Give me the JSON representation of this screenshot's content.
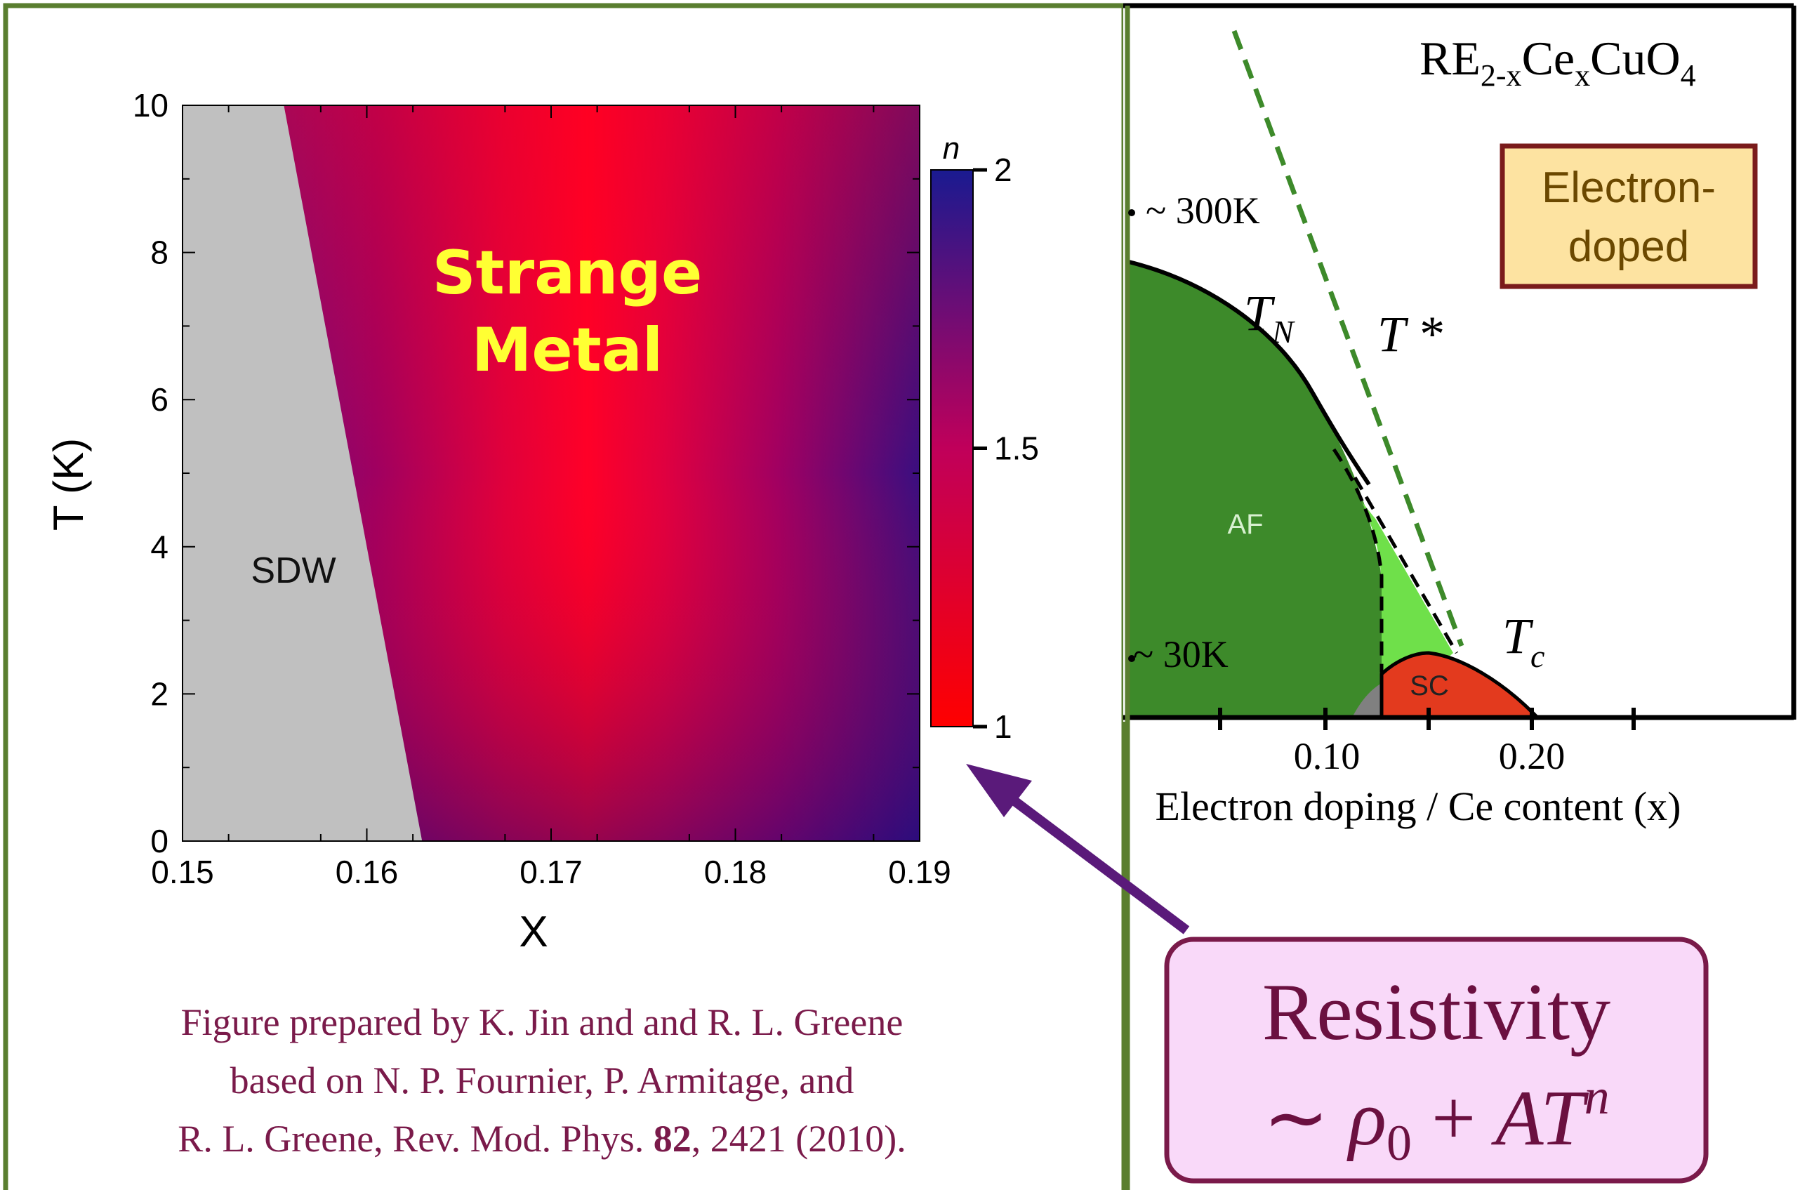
{
  "chart_data": [
    {
      "type": "heatmap",
      "title": "",
      "xlabel": "X",
      "ylabel": "T (K)",
      "xlim": [
        0.15,
        0.19
      ],
      "ylim": [
        0,
        10
      ],
      "xticks": [
        "0.15",
        "0.16",
        "0.17",
        "0.18",
        "0.19"
      ],
      "yticks": [
        "0",
        "2",
        "4",
        "6",
        "8",
        "10"
      ],
      "colorbar": {
        "label": "n",
        "range": [
          1,
          2
        ],
        "ticks": [
          "1",
          "1.5",
          "2"
        ],
        "low_color": "#ff0000",
        "high_color": "#1a0a78"
      },
      "regions": [
        {
          "name": "SDW",
          "boundary": [
            [
              0.1555,
              10
            ],
            [
              0.163,
              0
            ]
          ],
          "color": "#c0c0c0"
        },
        {
          "name": "Strange Metal",
          "color_scale": "n"
        }
      ],
      "annotations": [
        {
          "text": "Strange",
          "color": "#ffff33"
        },
        {
          "text": "Metal",
          "color": "#ffff33"
        }
      ]
    },
    {
      "type": "area",
      "title": "RE2-xCexCuO4",
      "xlabel": "Electron doping / Ce content (x)",
      "xticks": [
        "0.10",
        "0.20"
      ],
      "phases": [
        {
          "name": "AF",
          "color": "#3d8a2a"
        },
        {
          "name": "SC",
          "color": "#e33a1e"
        }
      ],
      "lines": [
        {
          "name": "TN",
          "label": "T",
          "sub": "N"
        },
        {
          "name": "T*",
          "label": "T *",
          "style": "dashed",
          "color": "#3d8a2a"
        },
        {
          "name": "Tc",
          "label": "T",
          "sub": "c"
        }
      ],
      "annotations": [
        "~ 300K",
        "~ 30K"
      ],
      "badge": {
        "line1": "Electron-",
        "line2": "doped",
        "bg": "#fde3a1",
        "border": "#7a1b1b",
        "color": "#6b4800"
      }
    }
  ],
  "caption": {
    "line1": "Figure prepared by K. Jin and and R. L. Greene",
    "line2": "based on N. P. Fournier, P. Armitage, and",
    "line3_pre": "R. L. Greene, Rev. Mod. Phys. ",
    "line3_bold": "82",
    "line3_post": ", 2421 (2010).",
    "color": "#7a1a4a"
  },
  "callout": {
    "title": "Resistivity",
    "tilde": "∼",
    "rho": "ρ",
    "rho_sub": "0",
    "plus": "+",
    "A": "A",
    "T": "T",
    "n": "n",
    "bg": "#f9d9f9",
    "border": "#7a1a4a",
    "text_color": "#6b1040"
  },
  "colors": {
    "frame_green": "#5a7e2f",
    "arrow_purple": "#5a1a7a"
  }
}
